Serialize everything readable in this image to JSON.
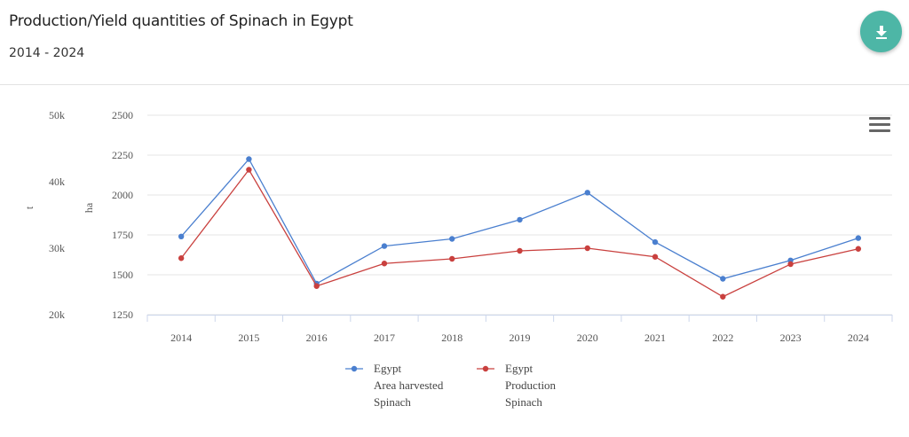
{
  "header": {
    "title": "Production/Yield quantities of Spinach in Egypt",
    "subtitle": "2014 - 2024"
  },
  "icons": {
    "download": "download-icon",
    "menu": "hamburger-menu-icon"
  },
  "colors": {
    "accent": "#4db6a6",
    "area_series": "#4a7fcf",
    "production_series": "#c9403e",
    "grid": "#e6e6e6"
  },
  "chart_data": {
    "type": "line",
    "x": [
      "2014",
      "2015",
      "2016",
      "2017",
      "2018",
      "2019",
      "2020",
      "2021",
      "2022",
      "2023",
      "2024"
    ],
    "left_axis_label": "t",
    "left_axis_ticks": [
      "50k",
      "40k",
      "30k",
      "20k"
    ],
    "left_axis_range": [
      20000,
      50000
    ],
    "right_axis_label": "ha",
    "right_axis_ticks": [
      "2500",
      "2250",
      "2000",
      "1750",
      "1500",
      "1250"
    ],
    "right_axis_range": [
      1250,
      2500
    ],
    "series": [
      {
        "name": "Egypt Area harvested Spinach",
        "legend_lines": [
          "Egypt",
          "Area harvested",
          "Spinach"
        ],
        "axis": "ha",
        "color": "#4a7fcf",
        "values": [
          1740,
          2225,
          1445,
          1680,
          1725,
          1845,
          2015,
          1705,
          1475,
          1590,
          1730
        ]
      },
      {
        "name": "Egypt Production Spinach",
        "legend_lines": [
          "Egypt",
          "Production",
          "Spinach"
        ],
        "axis": "t",
        "color": "#c9403e",
        "values": [
          28500,
          41800,
          24300,
          27700,
          28400,
          29600,
          30000,
          28700,
          22700,
          27600,
          29900
        ]
      }
    ],
    "grid": true,
    "legend_position": "bottom-center"
  }
}
